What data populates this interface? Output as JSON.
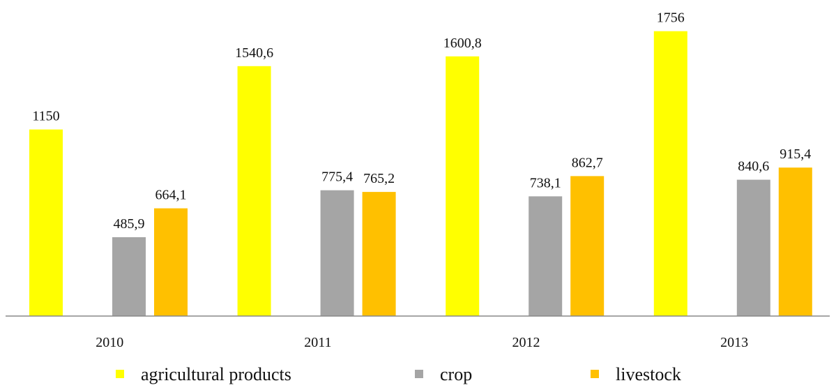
{
  "chart_data": {
    "type": "bar",
    "categories": [
      "2010",
      "2011",
      "2012",
      "2013"
    ],
    "series": [
      {
        "name": "agricultural products",
        "color": "#FFFF00",
        "values": [
          1150,
          1540.6,
          1600.8,
          1756
        ]
      },
      {
        "name": "crop",
        "color": "#A5A5A5",
        "values": [
          485.9,
          775.4,
          738.1,
          840.6
        ]
      },
      {
        "name": "livestock",
        "color": "#FFC000",
        "values": [
          664.1,
          765.2,
          862.7,
          915.4
        ]
      }
    ],
    "data_labels": [
      [
        "1150",
        "1540,6",
        "1600,8",
        "1756"
      ],
      [
        "485,9",
        "775,4",
        "738,1",
        "840,6"
      ],
      [
        "664,1",
        "765,2",
        "862,7",
        "915,4"
      ]
    ],
    "title": "",
    "xlabel": "",
    "ylabel": "",
    "ylim": [
      0,
      1800
    ],
    "grid": false,
    "legend": "bottom"
  }
}
